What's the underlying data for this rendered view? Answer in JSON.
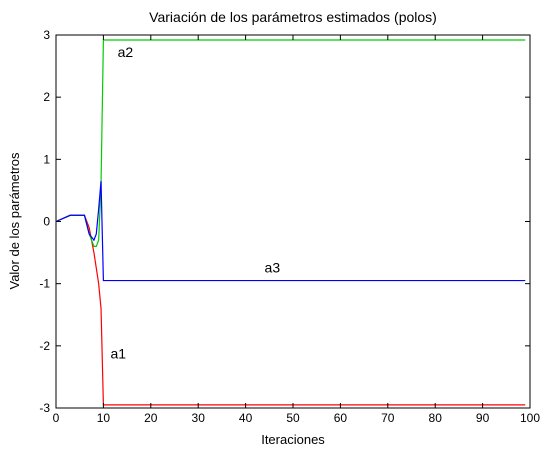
{
  "chart_data": {
    "type": "line",
    "title": "Variación de los parámetros estimados (polos)",
    "xlabel": "Iteraciones",
    "ylabel": "Valor de los parámetros",
    "xlim": [
      0,
      100
    ],
    "ylim": [
      -3,
      3
    ],
    "xticks": [
      0,
      10,
      20,
      30,
      40,
      50,
      60,
      70,
      80,
      90,
      100
    ],
    "yticks": [
      -3,
      -2,
      -1,
      0,
      1,
      2,
      3
    ],
    "grid": false,
    "series": [
      {
        "name": "a1",
        "color": "#ff0000",
        "x": [
          0,
          3,
          6,
          7,
          8,
          9,
          9.5,
          10,
          10.2,
          99
        ],
        "y": [
          0,
          0.1,
          0.1,
          -0.1,
          -0.5,
          -1.0,
          -1.4,
          -2.95,
          -2.95,
          -2.95
        ]
      },
      {
        "name": "a2",
        "color": "#00cc00",
        "x": [
          0,
          3,
          6,
          7,
          8,
          8.5,
          9,
          9.5,
          10,
          10.2,
          99
        ],
        "y": [
          0,
          0.1,
          0.1,
          -0.2,
          -0.4,
          -0.4,
          -0.3,
          0.6,
          2.92,
          2.92,
          2.92
        ]
      },
      {
        "name": "a3",
        "color": "#0000ff",
        "x": [
          0,
          3,
          6,
          7,
          8,
          8.5,
          9,
          9.5,
          10,
          10.2,
          99
        ],
        "y": [
          0,
          0.1,
          0.1,
          -0.2,
          -0.3,
          -0.2,
          0.2,
          0.65,
          -0.95,
          -0.95,
          -0.95
        ]
      }
    ],
    "annotations": [
      {
        "text": "a2",
        "x": 13,
        "y": 2.65
      },
      {
        "text": "a3",
        "x": 44,
        "y": -0.82
      },
      {
        "text": "a1",
        "x": 11.5,
        "y": -2.2
      }
    ]
  }
}
